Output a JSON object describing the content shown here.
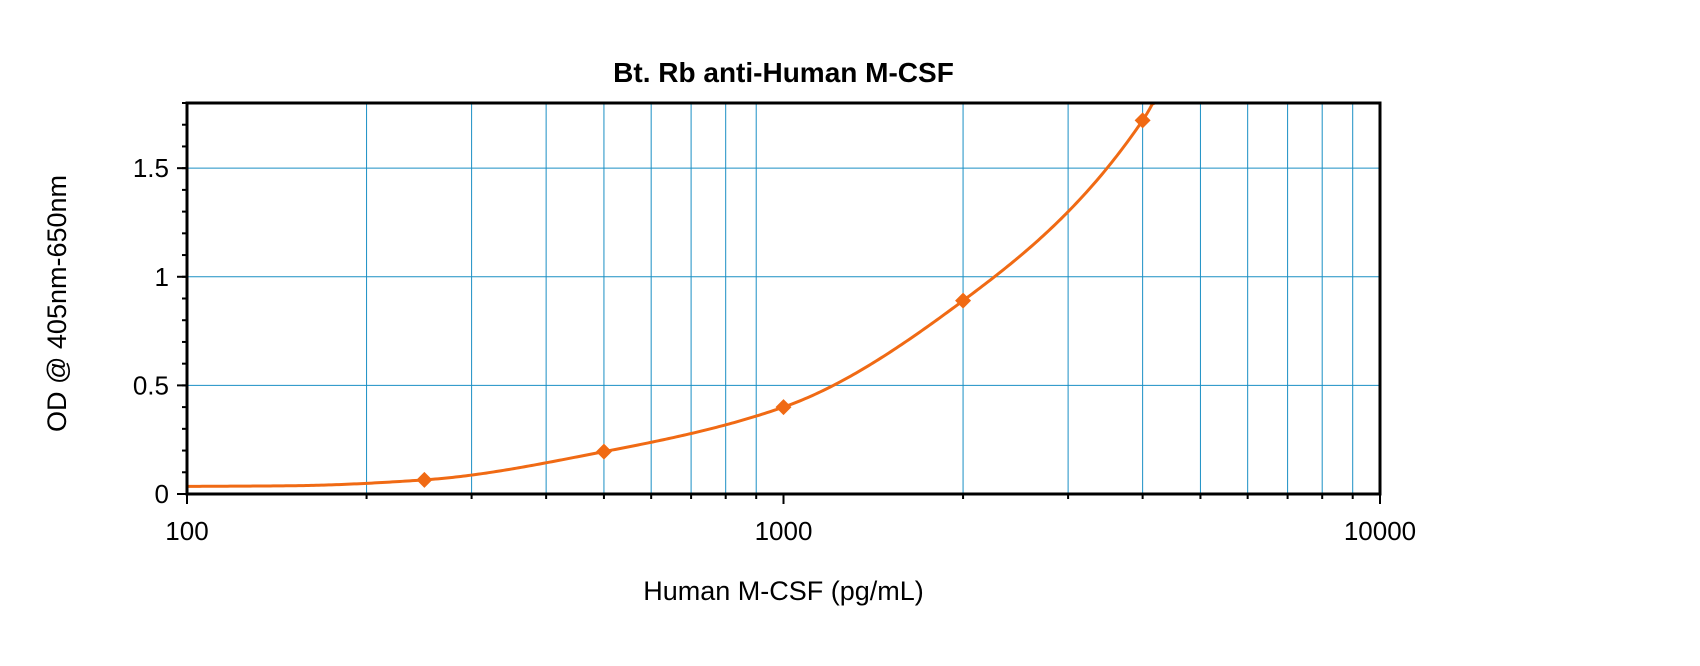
{
  "chart_data": {
    "type": "scatter",
    "title": "Bt. Rb anti-Human M-CSF",
    "xlabel": "Human M-CSF (pg/mL)",
    "ylabel": "OD @ 405nm-650nm",
    "x_scale": "log",
    "xlim": [
      100,
      10000
    ],
    "ylim": [
      0,
      1.8
    ],
    "x_ticks": [
      100,
      1000,
      10000
    ],
    "x_tick_labels": [
      "100",
      "1000",
      "10000"
    ],
    "y_ticks": [
      0,
      0.5,
      1,
      1.5
    ],
    "y_tick_labels": [
      "0",
      "0.5",
      "1",
      "1.5"
    ],
    "grid": true,
    "series": [
      {
        "x": [
          250,
          500,
          1000,
          2000,
          4000
        ],
        "y": [
          0.065,
          0.195,
          0.4,
          0.89,
          1.72
        ],
        "color": "#f06a14",
        "marker": "diamond",
        "fit": "curve"
      }
    ]
  }
}
